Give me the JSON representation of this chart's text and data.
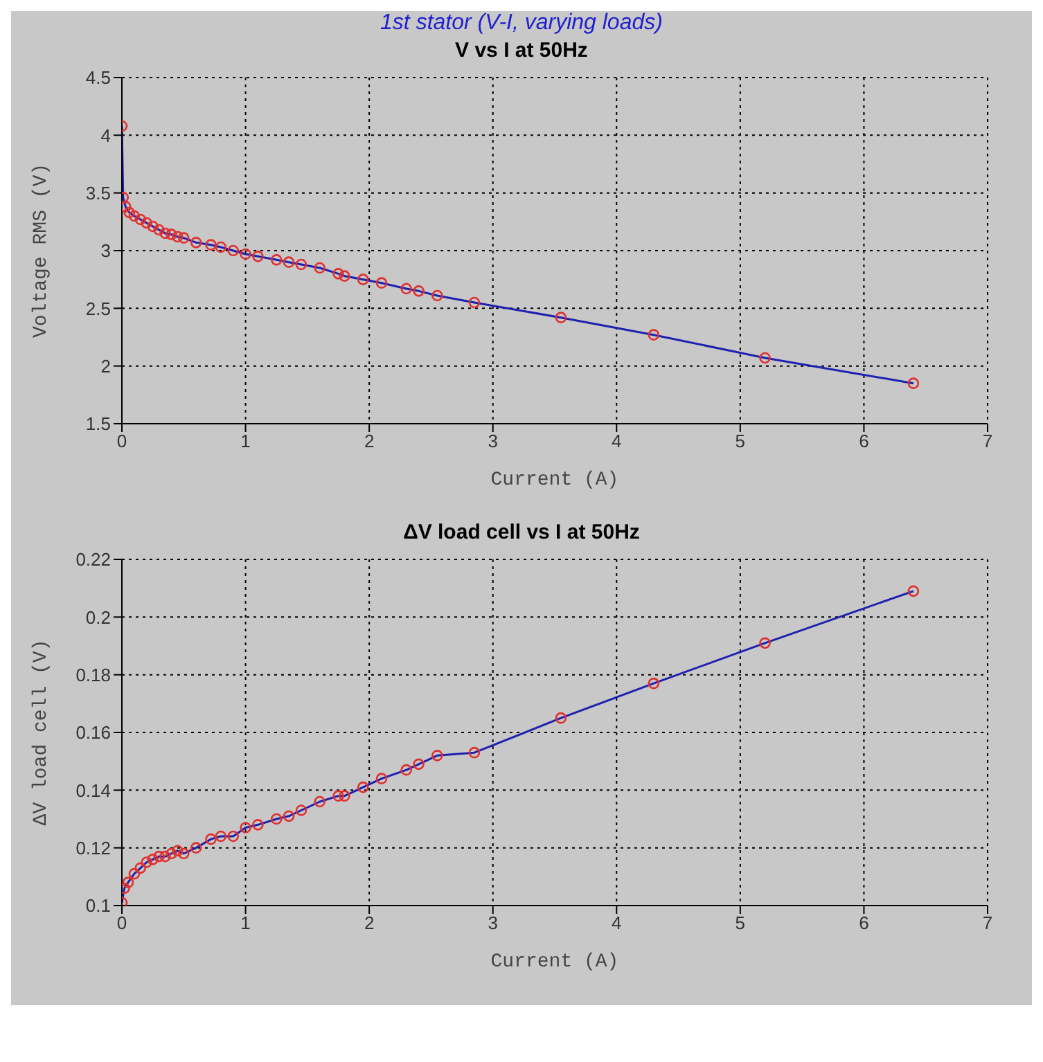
{
  "chart_data": [
    {
      "type": "line",
      "title": "V vs  I at 50Hz",
      "annotations": [
        "1st stator (V-I, varying loads)"
      ],
      "xlabel": "Current (A)",
      "ylabel": "Voltage RMS (V)",
      "x": [
        0,
        0.01,
        0.03,
        0.06,
        0.1,
        0.15,
        0.2,
        0.25,
        0.3,
        0.35,
        0.4,
        0.45,
        0.5,
        0.6,
        0.72,
        0.8,
        0.9,
        1.0,
        1.1,
        1.25,
        1.35,
        1.45,
        1.6,
        1.75,
        1.8,
        1.95,
        2.1,
        2.3,
        2.4,
        2.55,
        2.85,
        3.55,
        4.3,
        5.2,
        6.4
      ],
      "series": [
        {
          "color": "#2020b0",
          "marker": "none",
          "values": [
            4.08,
            3.46,
            3.38,
            3.33,
            3.3,
            3.27,
            3.24,
            3.21,
            3.18,
            3.15,
            3.14,
            3.12,
            3.11,
            3.07,
            3.05,
            3.03,
            3.0,
            2.97,
            2.95,
            2.92,
            2.9,
            2.88,
            2.85,
            2.8,
            2.78,
            2.75,
            2.72,
            2.67,
            2.65,
            2.61,
            2.55,
            2.42,
            2.27,
            2.07,
            1.85
          ]
        },
        {
          "type": "scatter",
          "color": "#e03030",
          "marker": "circle",
          "values": [
            4.08,
            3.46,
            3.38,
            3.33,
            3.3,
            3.27,
            3.24,
            3.21,
            3.18,
            3.15,
            3.14,
            3.12,
            3.11,
            3.07,
            3.05,
            3.03,
            3.0,
            2.97,
            2.95,
            2.92,
            2.9,
            2.88,
            2.85,
            2.8,
            2.78,
            2.75,
            2.72,
            2.67,
            2.65,
            2.61,
            2.55,
            2.42,
            2.27,
            2.07,
            1.85
          ]
        }
      ],
      "xlim": [
        0,
        7
      ],
      "xticks": [
        0,
        1,
        2,
        3,
        4,
        5,
        6,
        7
      ],
      "ylim": [
        1.5,
        4.5
      ],
      "yticks": [
        1.5,
        2,
        2.5,
        3,
        3.5,
        4,
        4.5
      ],
      "grid": true,
      "line_style": "solid"
    },
    {
      "type": "line",
      "title": "ΔV load cell vs I at 50Hz",
      "xlabel": "Current (A)",
      "ylabel": "ΔV load cell (V)",
      "x": [
        0,
        0.02,
        0.05,
        0.1,
        0.15,
        0.2,
        0.25,
        0.3,
        0.35,
        0.4,
        0.45,
        0.5,
        0.6,
        0.72,
        0.8,
        0.9,
        1.0,
        1.1,
        1.25,
        1.35,
        1.45,
        1.6,
        1.75,
        1.8,
        1.95,
        2.1,
        2.3,
        2.4,
        2.55,
        2.85,
        3.55,
        4.3,
        5.2,
        6.4
      ],
      "series": [
        {
          "color": "#2020b0",
          "marker": "none",
          "values": [
            0.101,
            0.106,
            0.108,
            0.111,
            0.113,
            0.115,
            0.116,
            0.117,
            0.117,
            0.118,
            0.119,
            0.118,
            0.12,
            0.123,
            0.124,
            0.124,
            0.127,
            0.128,
            0.13,
            0.131,
            0.133,
            0.136,
            0.138,
            0.138,
            0.141,
            0.144,
            0.147,
            0.149,
            0.152,
            0.153,
            0.165,
            0.177,
            0.191,
            0.209
          ]
        },
        {
          "type": "scatter",
          "color": "#e03030",
          "marker": "circle",
          "values": [
            0.101,
            0.106,
            0.108,
            0.111,
            0.113,
            0.115,
            0.116,
            0.117,
            0.117,
            0.118,
            0.119,
            0.118,
            0.12,
            0.123,
            0.124,
            0.124,
            0.127,
            0.128,
            0.13,
            0.131,
            0.133,
            0.136,
            0.138,
            0.138,
            0.141,
            0.144,
            0.147,
            0.149,
            0.152,
            0.153,
            0.165,
            0.177,
            0.191,
            0.209
          ]
        }
      ],
      "xlim": [
        0,
        7
      ],
      "xticks": [
        0,
        1,
        2,
        3,
        4,
        5,
        6,
        7
      ],
      "ylim": [
        0.1,
        0.22
      ],
      "yticks": [
        0.1,
        0.12,
        0.14,
        0.16,
        0.18,
        0.2,
        0.22
      ],
      "grid": true,
      "line_style": "solid"
    }
  ]
}
